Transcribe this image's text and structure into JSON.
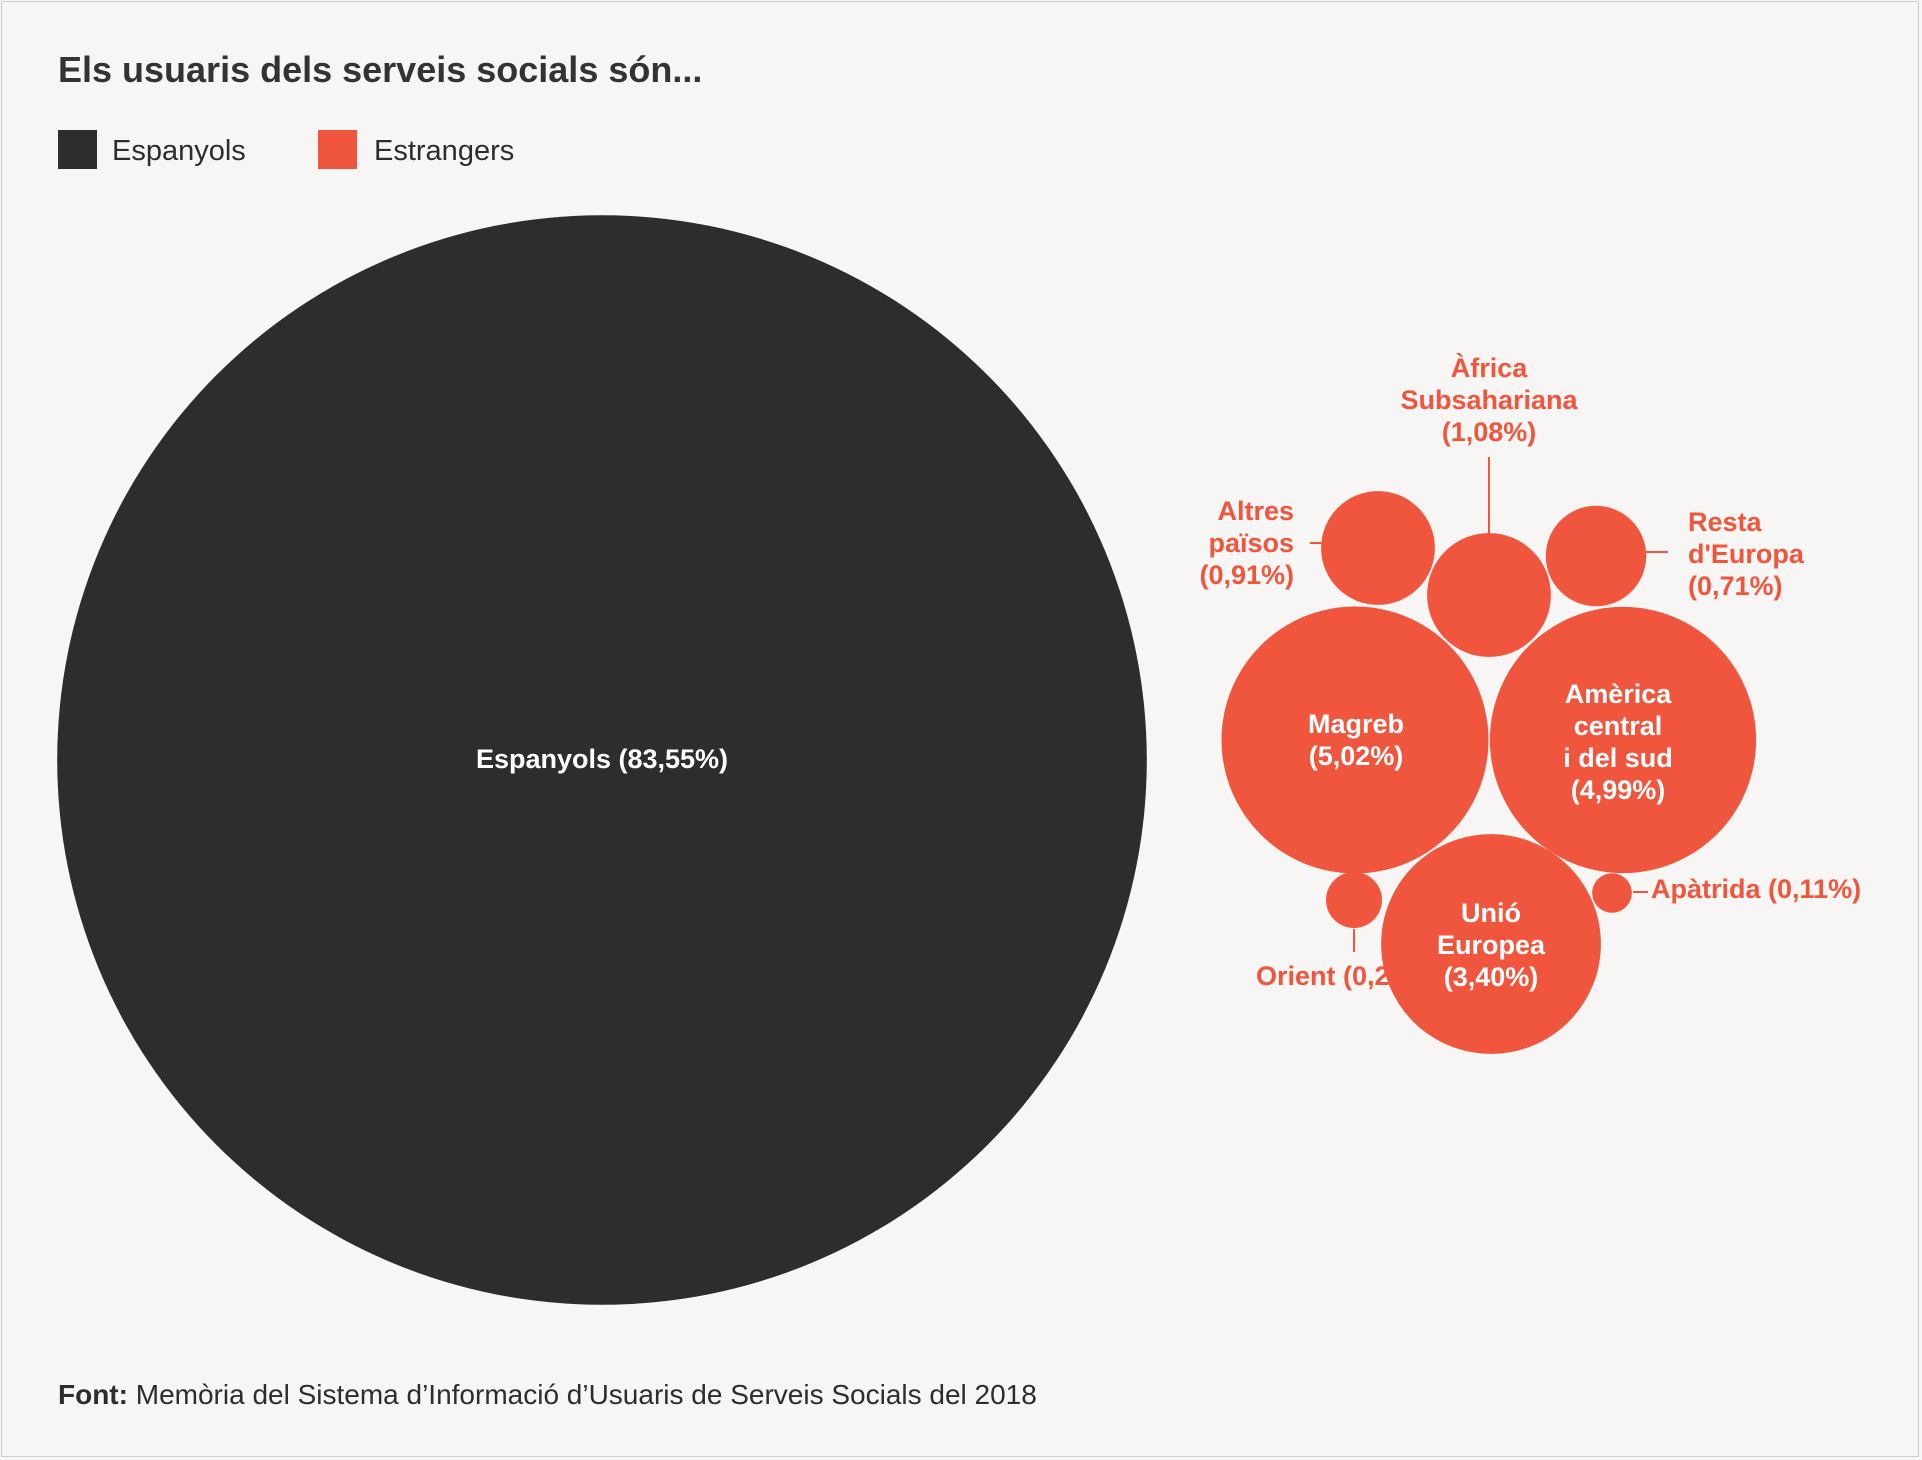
{
  "chart_data": {
    "type": "bubble",
    "title": "Els usuaris dels serveis socials són...",
    "legend": [
      {
        "name": "Espanyols",
        "color": "#2d2d2d"
      },
      {
        "name": "Estrangers",
        "color": "#f0553d"
      }
    ],
    "bubbles": [
      {
        "id": "espanyols",
        "group": "Espanyols",
        "label_lines": [
          "Espanyols (83,55%)"
        ],
        "value": 83.55
      },
      {
        "id": "magreb",
        "group": "Estrangers",
        "label_lines": [
          "Magreb",
          "(5,02%)"
        ],
        "value": 5.02
      },
      {
        "id": "america",
        "group": "Estrangers",
        "label_lines": [
          "Amèrica",
          "central",
          "i del sud",
          "(4,99%)"
        ],
        "value": 4.99
      },
      {
        "id": "ue",
        "group": "Estrangers",
        "label_lines": [
          "Unió",
          "Europea",
          "(3,40%)"
        ],
        "value": 3.4
      },
      {
        "id": "africa",
        "group": "Estrangers",
        "label_lines": [
          "Àfrica",
          "Subsahariana",
          "(1,08%)"
        ],
        "value": 1.08
      },
      {
        "id": "altres",
        "group": "Estrangers",
        "label_lines": [
          "Altres",
          "països",
          "(0,91%)"
        ],
        "value": 0.91
      },
      {
        "id": "europa",
        "group": "Estrangers",
        "label_lines": [
          "Resta",
          "d'Europa",
          "(0,71%)"
        ],
        "value": 0.71
      },
      {
        "id": "orient",
        "group": "Estrangers",
        "label_lines": [
          "Orient (0,22%)"
        ],
        "value": 0.22
      },
      {
        "id": "apatrida",
        "group": "Estrangers",
        "label_lines": [
          "Apàtrida (0,11%)"
        ],
        "value": 0.11
      }
    ]
  },
  "source": {
    "bold": "Font:",
    "text": " Memòria del Sistema d’Informació d’Usuaris de Serveis Socials del 2018"
  }
}
